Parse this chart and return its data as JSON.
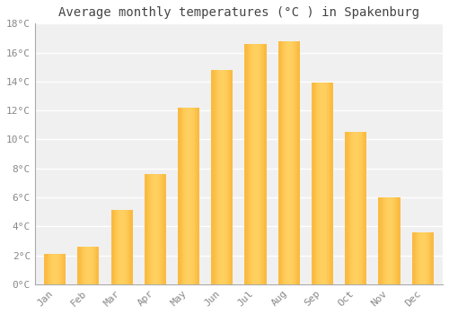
{
  "months": [
    "Jan",
    "Feb",
    "Mar",
    "Apr",
    "May",
    "Jun",
    "Jul",
    "Aug",
    "Sep",
    "Oct",
    "Nov",
    "Dec"
  ],
  "temperatures": [
    2.1,
    2.6,
    5.1,
    7.6,
    12.2,
    14.8,
    16.6,
    16.8,
    13.9,
    10.5,
    6.0,
    3.6
  ],
  "bar_color_face": "#FFA500",
  "bar_color_edge": "#E08000",
  "bar_color_light": "#FFD060",
  "title": "Average monthly temperatures (°C ) in Spakenburg",
  "ylim": [
    0,
    18
  ],
  "yticks": [
    0,
    2,
    4,
    6,
    8,
    10,
    12,
    14,
    16,
    18
  ],
  "ytick_labels": [
    "0°C",
    "2°C",
    "4°C",
    "6°C",
    "8°C",
    "10°C",
    "12°C",
    "14°C",
    "16°C",
    "18°C"
  ],
  "background_color": "#ffffff",
  "plot_bg_color": "#f0f0f0",
  "grid_color": "#ffffff",
  "title_fontsize": 10,
  "tick_fontsize": 8,
  "bar_width": 0.65,
  "title_color": "#444444",
  "tick_color": "#888888",
  "spine_color": "#aaaaaa"
}
